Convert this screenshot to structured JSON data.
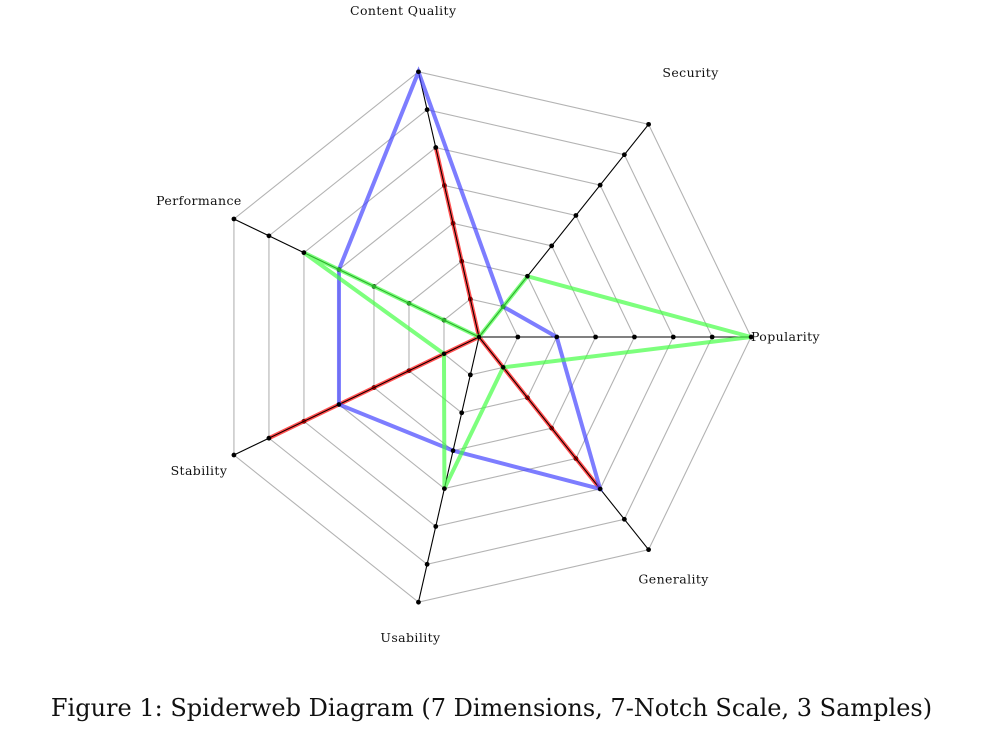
{
  "figure": {
    "caption": "Figure 1: Spiderweb Diagram (7 Dimensions, 7-Notch Scale, 3 Samples)"
  },
  "chart_data": {
    "type": "radar",
    "scale_notches": 7,
    "axes": [
      "Popularity",
      "Security",
      "Content Quality",
      "Performance",
      "Stability",
      "Usability",
      "Generality"
    ],
    "series": [
      {
        "color": "#ff0000",
        "values": [
          0,
          0,
          5,
          0,
          6,
          0,
          5
        ]
      },
      {
        "color": "#4040ff",
        "values": [
          2,
          1,
          7,
          4,
          4,
          3,
          5
        ]
      },
      {
        "color": "#40ff40",
        "values": [
          7,
          2,
          0,
          5,
          1,
          4,
          1
        ]
      }
    ],
    "grid": true,
    "grid_color": "#b3b3b3",
    "axis_color": "#000000"
  }
}
